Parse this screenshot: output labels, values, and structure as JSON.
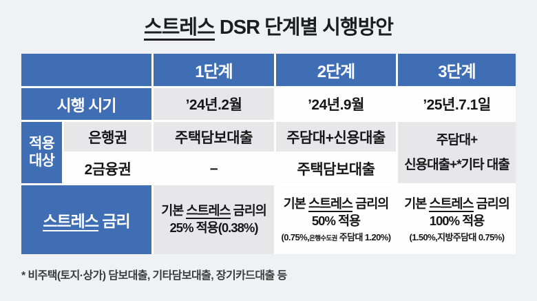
{
  "title": {
    "underlined": "스트레스",
    "rest": " DSR 단계별 시행방안"
  },
  "colors": {
    "header_blue": "#3f6eb5",
    "cell_gray": "#e7e7e9",
    "cell_white": "#fdfdfe",
    "page_bg": "#f0f1f4",
    "text_dark": "#161616"
  },
  "table": {
    "columns": [
      "1단계",
      "2단계",
      "3단계"
    ],
    "timing": {
      "label": "시행 시기",
      "step1": "’24년.2월",
      "step2": "’24년.9월",
      "step3": "’25년.7.1일"
    },
    "scope": {
      "label_line1": "적용",
      "label_line2": "대상",
      "bank": {
        "label": "은행권",
        "step1": "주택담보대출",
        "step2": "주담대+신용대출"
      },
      "nonbank": {
        "label": "2금융권",
        "step1": "–",
        "step2": "주택담보대출"
      },
      "step3_line1": "주담대+",
      "step3_line2": "신용대출+*기타 대출"
    },
    "rate": {
      "label_underlined": "스트레스",
      "label_rest": " 금리",
      "step1": {
        "line1_prefix": "기본 ",
        "line1_underlined": "스트레스",
        "line1_suffix": " 금리의",
        "line2": "25% 적용(0.38%)"
      },
      "step2": {
        "line1_prefix": "기본 ",
        "line1_underlined": "스트레스",
        "line1_suffix": " 금리의",
        "line2": "50% 적용",
        "note_prefix": "(0.75%,",
        "note_small": "은행수도권",
        "note_suffix": " 주담대 1.20%)"
      },
      "step3": {
        "line1_prefix": "기본 ",
        "line1_underlined": "스트레스",
        "line1_suffix": " 금리의",
        "line2": "100% 적용",
        "note": "(1.50%,지방주담대 0.75%)"
      }
    }
  },
  "footnote": "* 비주택(토지·상가) 담보대출, 기타담보대출, 장기카드대출 등"
}
